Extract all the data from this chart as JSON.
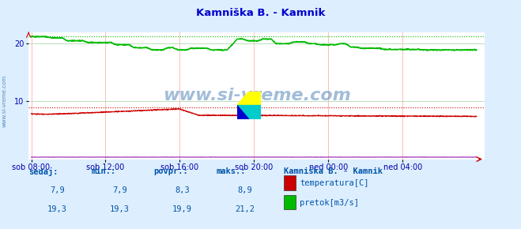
{
  "title": "Kamniška B. - Kamnik",
  "bg_color": "#ddeeff",
  "plot_bg_color": "#ffffff",
  "grid_color_v": "#ffbbbb",
  "grid_color_h": "#bbddbb",
  "title_color": "#0000cc",
  "axis_label_color": "#0000aa",
  "text_color": "#0055aa",
  "x_tick_labels": [
    "sob 08:00",
    "sob 12:00",
    "sob 16:00",
    "sob 20:00",
    "ned 00:00",
    "ned 04:00"
  ],
  "x_tick_positions": [
    0,
    288,
    576,
    864,
    1152,
    1440
  ],
  "total_points": 1728,
  "ylim": [
    0,
    22
  ],
  "yticks": [
    10,
    20
  ],
  "temp_color": "#cc0000",
  "flow_color": "#00bb00",
  "height_color": "#8800aa",
  "watermark_text": "www.si-vreme.com",
  "watermark_color": "#5588bb",
  "sidebar_text": "www.si-vreme.com",
  "sidebar_color": "#5588bb",
  "footer_headers": [
    "sedaj:",
    "min.:",
    "povpr.:",
    "maks.:"
  ],
  "footer_values_temp": [
    "7,9",
    "7,9",
    "8,3",
    "8,9"
  ],
  "footer_values_flow": [
    "19,3",
    "19,3",
    "19,9",
    "21,2"
  ],
  "footer_legend_title": "Kamniška B. - Kamnik",
  "footer_legend_items": [
    "temperatura[C]",
    "pretok[m3/s]"
  ],
  "footer_legend_colors": [
    "#cc0000",
    "#00bb00"
  ],
  "temp_max": 8.9,
  "flow_max": 21.2
}
